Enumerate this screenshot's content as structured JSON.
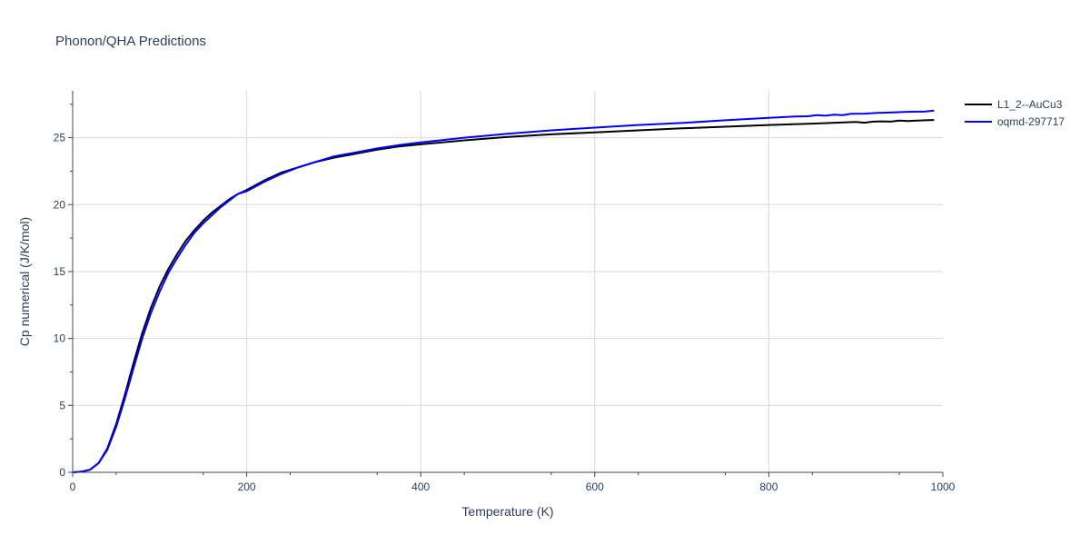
{
  "chart_data": {
    "type": "line",
    "title": "Phonon/QHA Predictions",
    "xlabel": "Temperature (K)",
    "ylabel": "Cp numerical (J/K/mol)",
    "xlim": [
      0,
      1000
    ],
    "ylim": [
      0,
      28.5
    ],
    "xticks": [
      0,
      200,
      400,
      600,
      800,
      1000
    ],
    "yticks": [
      0,
      5,
      10,
      15,
      20,
      25
    ],
    "grid": true,
    "legend_position": "top-right",
    "series": [
      {
        "name": "L1_2--AuCu3",
        "color": "#000000",
        "x": [
          0,
          10,
          20,
          30,
          40,
          50,
          60,
          70,
          80,
          90,
          100,
          110,
          120,
          130,
          140,
          150,
          160,
          170,
          180,
          190,
          200,
          220,
          240,
          260,
          280,
          300,
          325,
          350,
          375,
          400,
          450,
          500,
          550,
          600,
          650,
          700,
          750,
          800,
          850,
          890,
          900,
          910,
          920,
          930,
          940,
          950,
          960,
          970,
          980,
          990
        ],
        "y": [
          0,
          0.05,
          0.2,
          0.7,
          1.8,
          3.6,
          5.8,
          8.2,
          10.4,
          12.3,
          13.9,
          15.2,
          16.3,
          17.3,
          18.1,
          18.8,
          19.4,
          19.9,
          20.4,
          20.8,
          21.1,
          21.8,
          22.4,
          22.8,
          23.2,
          23.5,
          23.8,
          24.1,
          24.35,
          24.5,
          24.8,
          25.05,
          25.25,
          25.4,
          25.55,
          25.7,
          25.82,
          25.95,
          26.05,
          26.15,
          26.18,
          26.12,
          26.2,
          26.22,
          26.2,
          26.28,
          26.25,
          26.28,
          26.3,
          26.32
        ]
      },
      {
        "name": "oqmd-297717",
        "color": "#0000ff",
        "x": [
          0,
          10,
          20,
          30,
          40,
          50,
          60,
          70,
          80,
          90,
          100,
          110,
          120,
          130,
          140,
          150,
          160,
          170,
          180,
          190,
          200,
          220,
          240,
          260,
          280,
          300,
          325,
          350,
          375,
          400,
          450,
          500,
          550,
          600,
          650,
          700,
          750,
          800,
          830,
          845,
          855,
          865,
          875,
          885,
          895,
          910,
          925,
          940,
          955,
          965,
          980,
          990
        ],
        "y": [
          0,
          0.05,
          0.2,
          0.7,
          1.7,
          3.4,
          5.5,
          7.8,
          10.0,
          11.9,
          13.5,
          14.9,
          16.0,
          17.0,
          17.9,
          18.6,
          19.2,
          19.8,
          20.3,
          20.8,
          21.0,
          21.7,
          22.3,
          22.8,
          23.2,
          23.6,
          23.9,
          24.2,
          24.45,
          24.65,
          25.0,
          25.3,
          25.55,
          25.75,
          25.95,
          26.1,
          26.3,
          26.48,
          26.58,
          26.6,
          26.68,
          26.64,
          26.72,
          26.68,
          26.78,
          26.8,
          26.85,
          26.88,
          26.92,
          26.94,
          26.95,
          27.02
        ]
      }
    ]
  }
}
